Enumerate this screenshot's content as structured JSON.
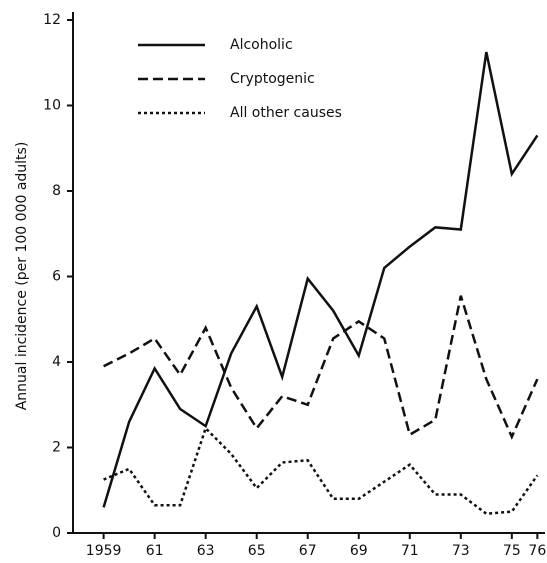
{
  "chart_data": {
    "type": "line",
    "y_label": "Annual incidence (per 100 000 adults)",
    "x": [
      1959,
      1960,
      1961,
      1962,
      1963,
      1964,
      1965,
      1966,
      1967,
      1968,
      1969,
      1970,
      1971,
      1972,
      1973,
      1974,
      1975,
      1976
    ],
    "series": [
      {
        "name": "Alcoholic",
        "color": "#111111",
        "dash": "solid",
        "values": [
          0.6,
          2.6,
          3.85,
          2.9,
          2.5,
          4.2,
          5.3,
          3.65,
          5.95,
          5.2,
          4.15,
          6.2,
          6.7,
          7.15,
          7.1,
          11.25,
          8.4,
          9.3
        ]
      },
      {
        "name": "Cryptogenic",
        "color": "#111111",
        "dash": "dashed",
        "values": [
          3.9,
          4.2,
          4.55,
          3.7,
          4.8,
          3.4,
          2.45,
          3.2,
          3.0,
          4.55,
          4.95,
          4.55,
          2.3,
          2.65,
          5.55,
          3.6,
          2.25,
          3.6
        ]
      },
      {
        "name": "All other causes",
        "color": "#111111",
        "dash": "dotted",
        "values": [
          1.25,
          1.5,
          0.65,
          0.65,
          2.45,
          1.85,
          1.05,
          1.65,
          1.7,
          0.8,
          0.8,
          1.2,
          1.6,
          0.9,
          0.9,
          0.45,
          0.5,
          1.35
        ]
      }
    ],
    "xlim": [
      1957.8,
      1976.3
    ],
    "xticks": [
      1959,
      {
        "value": 1961,
        "label": "61"
      },
      {
        "value": 1963,
        "label": "63"
      },
      {
        "value": 1965,
        "label": "65"
      },
      {
        "value": 1967,
        "label": "67"
      },
      {
        "value": 1969,
        "label": "69"
      },
      {
        "value": 1971,
        "label": "71"
      },
      {
        "value": 1973,
        "label": "73"
      },
      {
        "value": 1975,
        "label": "75"
      },
      {
        "value": 1976,
        "label": "76"
      }
    ],
    "ylim": [
      0,
      12
    ],
    "yticks": [
      0,
      2,
      4,
      6,
      8,
      10,
      12
    ],
    "legend": "upper left"
  }
}
